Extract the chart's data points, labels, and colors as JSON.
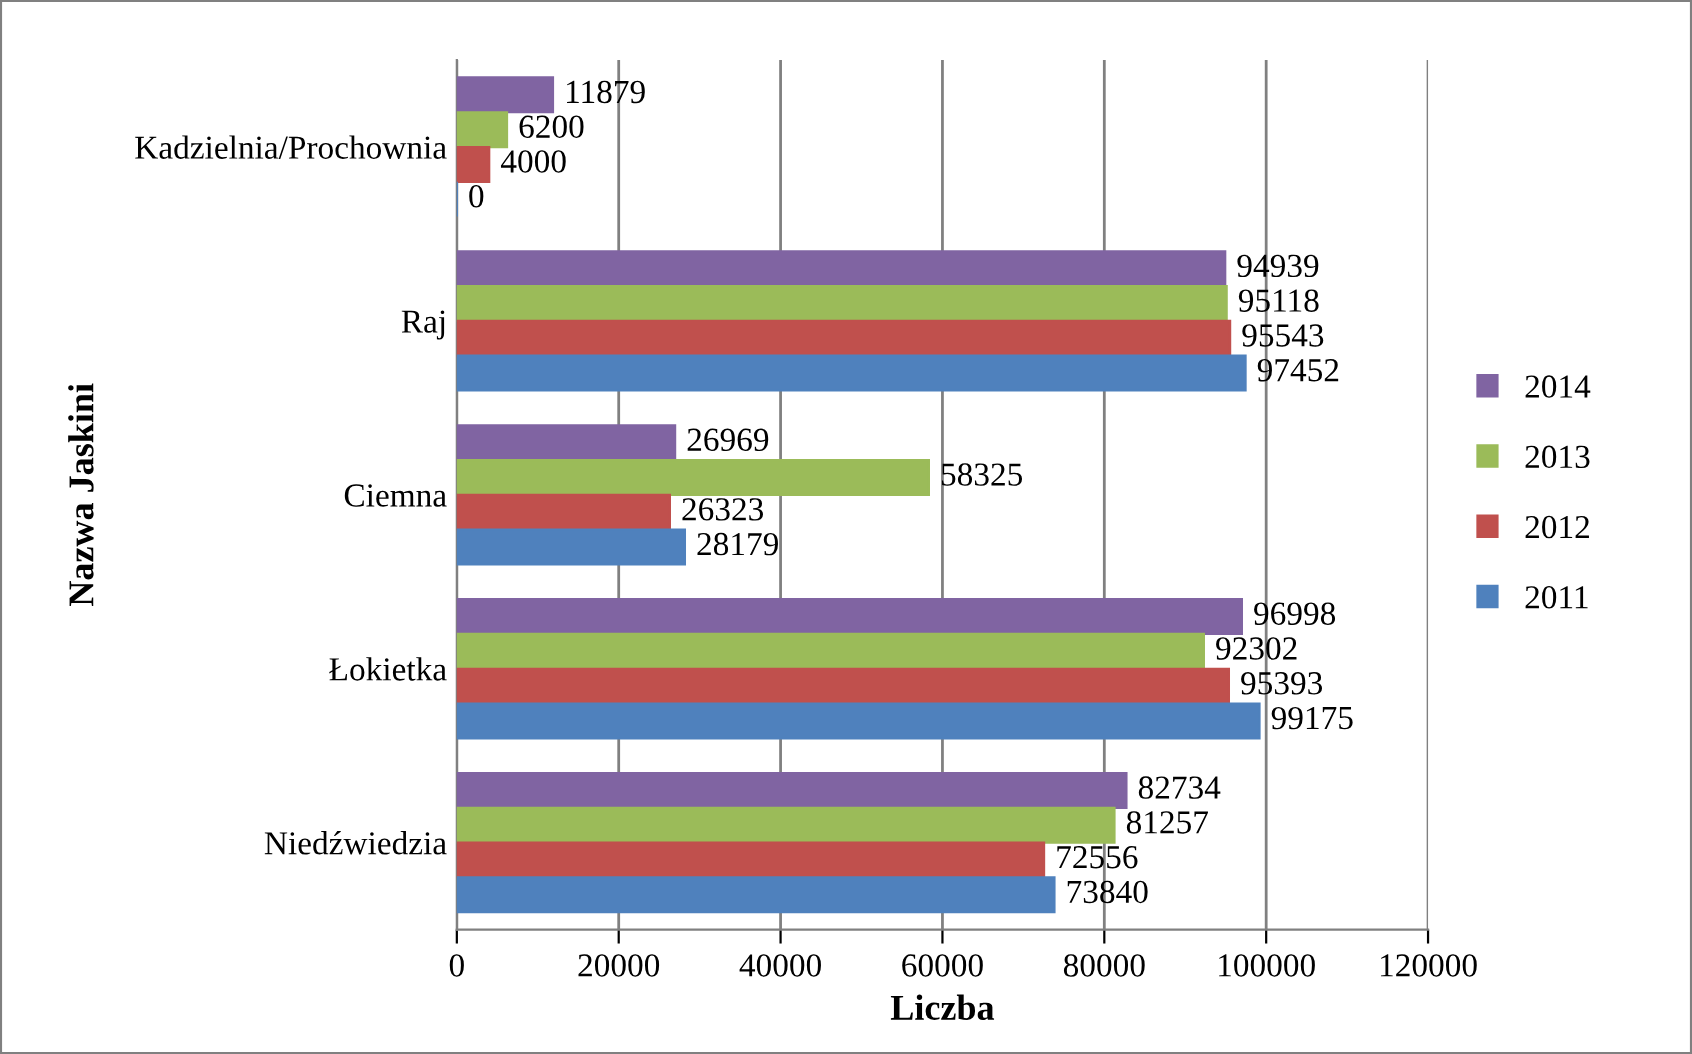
{
  "chart_data": {
    "type": "bar",
    "orientation": "horizontal",
    "xlabel": "Liczba",
    "ylabel": "Nazwa Jaskini",
    "categories": [
      "Kadzielnia/Prochownia",
      "Raj",
      "Ciemna",
      "Łokietka",
      "Niedźwiedzia"
    ],
    "series": [
      {
        "name": "2014",
        "color": "#8064a2",
        "values": [
          11879,
          94939,
          26969,
          96998,
          82734
        ]
      },
      {
        "name": "2013",
        "color": "#9bbb59",
        "values": [
          6200,
          95118,
          58325,
          92302,
          81257
        ]
      },
      {
        "name": "2012",
        "color": "#c0504d",
        "values": [
          4000,
          95543,
          26323,
          95393,
          72556
        ]
      },
      {
        "name": "2011",
        "color": "#4f81bd",
        "values": [
          0,
          97452,
          28179,
          99175,
          73840
        ]
      }
    ],
    "xlim": [
      0,
      120000
    ],
    "xticks": [
      0,
      20000,
      40000,
      60000,
      80000,
      100000,
      120000
    ],
    "grid": "x",
    "legend": "right",
    "data_labels": true
  }
}
